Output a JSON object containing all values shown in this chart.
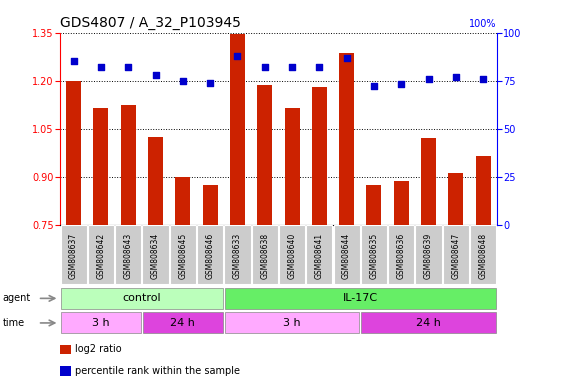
{
  "title": "GDS4807 / A_32_P103945",
  "samples": [
    "GSM808637",
    "GSM808642",
    "GSM808643",
    "GSM808634",
    "GSM808645",
    "GSM808646",
    "GSM808633",
    "GSM808638",
    "GSM808640",
    "GSM808641",
    "GSM808644",
    "GSM808635",
    "GSM808636",
    "GSM808639",
    "GSM808647",
    "GSM808648"
  ],
  "log2_values": [
    1.2,
    1.115,
    1.125,
    1.025,
    0.9,
    0.875,
    1.345,
    1.185,
    1.115,
    1.18,
    1.285,
    0.875,
    0.885,
    1.02,
    0.91,
    0.965
  ],
  "percentile_values": [
    85,
    82,
    82,
    78,
    75,
    74,
    88,
    82,
    82,
    82,
    87,
    72,
    73,
    76,
    77,
    76
  ],
  "ylim_left": [
    0.75,
    1.35
  ],
  "ylim_right": [
    0,
    100
  ],
  "yticks_left": [
    0.75,
    0.9,
    1.05,
    1.2,
    1.35
  ],
  "yticks_right": [
    0,
    25,
    50,
    75,
    100
  ],
  "bar_color": "#cc2200",
  "dot_color": "#0000cc",
  "agent_groups": [
    {
      "label": "control",
      "start": 0,
      "end": 6,
      "color": "#bbffbb"
    },
    {
      "label": "IL-17C",
      "start": 6,
      "end": 16,
      "color": "#66ee66"
    }
  ],
  "time_groups": [
    {
      "label": "3 h",
      "start": 0,
      "end": 3,
      "color": "#ffaaff"
    },
    {
      "label": "24 h",
      "start": 3,
      "end": 6,
      "color": "#dd44dd"
    },
    {
      "label": "3 h",
      "start": 6,
      "end": 11,
      "color": "#ffaaff"
    },
    {
      "label": "24 h",
      "start": 11,
      "end": 16,
      "color": "#dd44dd"
    }
  ],
  "legend_items": [
    {
      "label": "log2 ratio",
      "color": "#cc2200"
    },
    {
      "label": "percentile rank within the sample",
      "color": "#0000cc"
    }
  ],
  "grid_color": "black",
  "grid_style": "dotted",
  "bar_baseline": 0.75,
  "label_fontsize": 7,
  "title_fontsize": 10,
  "tick_fontsize": 7,
  "sample_fontsize": 5.5,
  "band_fontsize": 8
}
